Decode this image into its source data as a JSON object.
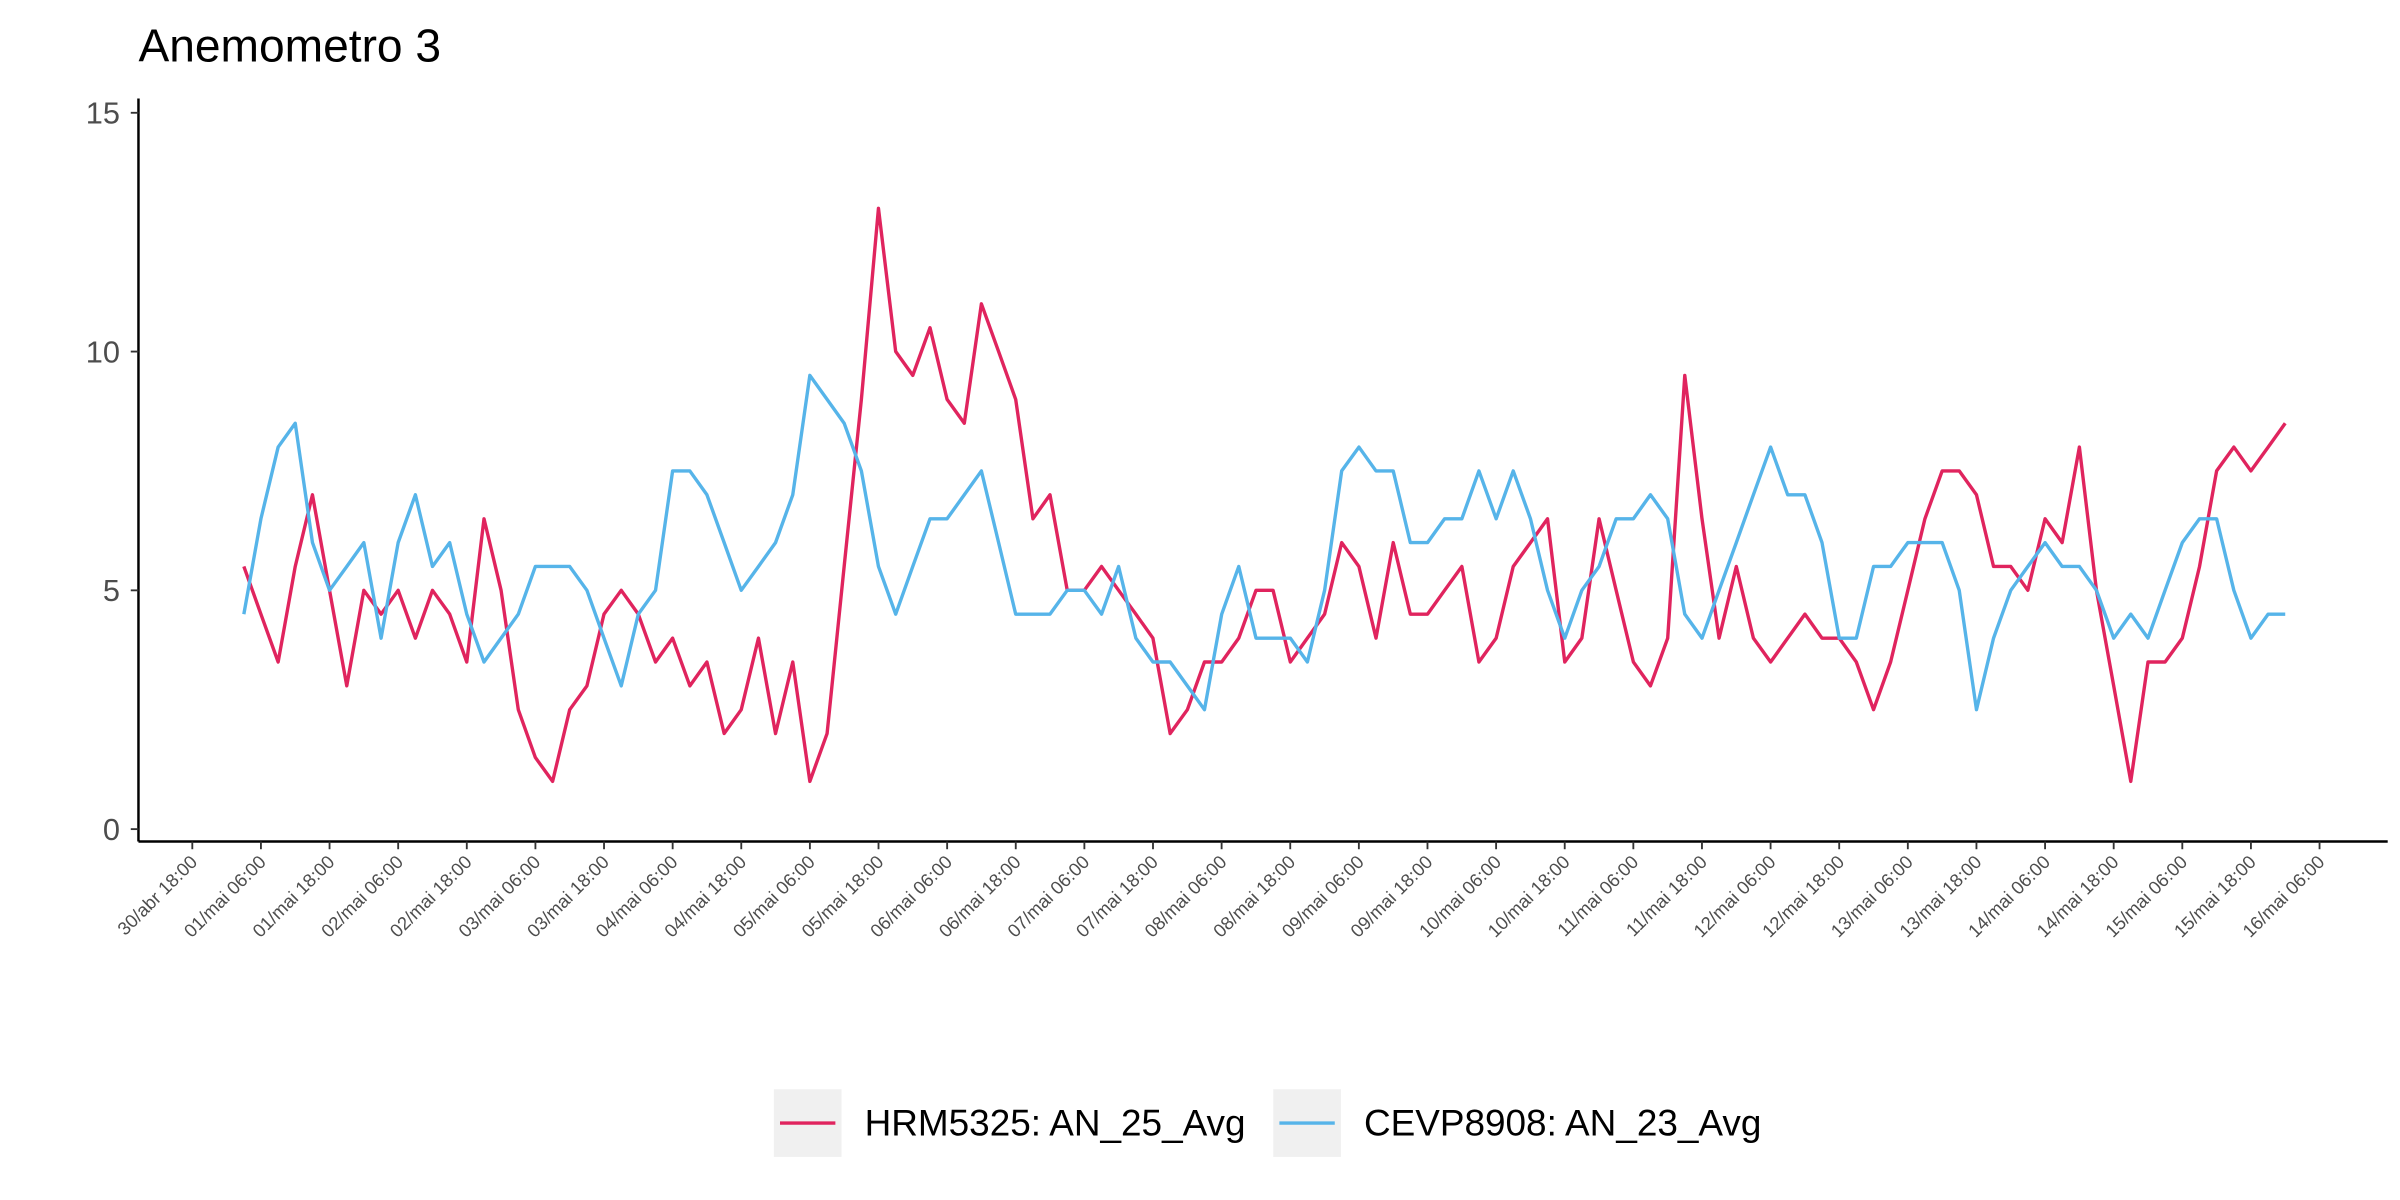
{
  "chart_data": {
    "type": "line",
    "title": "Anemometro 3",
    "x": [
      "01/mai 03:00",
      "01/mai 06:00",
      "01/mai 09:00",
      "01/mai 12:00",
      "01/mai 15:00",
      "01/mai 18:00",
      "01/mai 21:00",
      "02/mai 00:00",
      "02/mai 03:00",
      "02/mai 06:00",
      "02/mai 09:00",
      "02/mai 12:00",
      "02/mai 15:00",
      "02/mai 18:00",
      "02/mai 21:00",
      "03/mai 00:00",
      "03/mai 03:00",
      "03/mai 06:00",
      "03/mai 09:00",
      "03/mai 12:00",
      "03/mai 15:00",
      "03/mai 18:00",
      "03/mai 21:00",
      "04/mai 00:00",
      "04/mai 03:00",
      "04/mai 06:00",
      "04/mai 09:00",
      "04/mai 12:00",
      "04/mai 15:00",
      "04/mai 18:00",
      "04/mai 21:00",
      "05/mai 00:00",
      "05/mai 03:00",
      "05/mai 06:00",
      "05/mai 09:00",
      "05/mai 12:00",
      "05/mai 15:00",
      "05/mai 18:00",
      "05/mai 21:00",
      "06/mai 00:00",
      "06/mai 03:00",
      "06/mai 06:00",
      "06/mai 09:00",
      "06/mai 12:00",
      "06/mai 15:00",
      "06/mai 18:00",
      "06/mai 21:00",
      "07/mai 00:00",
      "07/mai 03:00",
      "07/mai 06:00",
      "07/mai 09:00",
      "07/mai 12:00",
      "07/mai 15:00",
      "07/mai 18:00",
      "07/mai 21:00",
      "08/mai 00:00",
      "08/mai 03:00",
      "08/mai 06:00",
      "08/mai 09:00",
      "08/mai 12:00",
      "08/mai 15:00",
      "08/mai 18:00",
      "08/mai 21:00",
      "09/mai 00:00",
      "09/mai 03:00",
      "09/mai 06:00",
      "09/mai 09:00",
      "09/mai 12:00",
      "09/mai 15:00",
      "09/mai 18:00",
      "09/mai 21:00",
      "10/mai 00:00",
      "10/mai 03:00",
      "10/mai 06:00",
      "10/mai 09:00",
      "10/mai 12:00",
      "10/mai 15:00",
      "10/mai 18:00",
      "10/mai 21:00",
      "11/mai 00:00",
      "11/mai 03:00",
      "11/mai 06:00",
      "11/mai 09:00",
      "11/mai 12:00",
      "11/mai 15:00",
      "11/mai 18:00",
      "11/mai 21:00",
      "12/mai 00:00",
      "12/mai 03:00",
      "12/mai 06:00",
      "12/mai 09:00",
      "12/mai 12:00",
      "12/mai 15:00",
      "12/mai 18:00",
      "12/mai 21:00",
      "13/mai 00:00",
      "13/mai 03:00",
      "13/mai 06:00",
      "13/mai 09:00",
      "13/mai 12:00",
      "13/mai 15:00",
      "13/mai 18:00",
      "13/mai 21:00",
      "14/mai 00:00",
      "14/mai 03:00",
      "14/mai 06:00",
      "14/mai 09:00",
      "14/mai 12:00",
      "14/mai 15:00",
      "14/mai 18:00",
      "14/mai 21:00",
      "15/mai 00:00",
      "15/mai 03:00",
      "15/mai 06:00",
      "15/mai 09:00",
      "15/mai 12:00",
      "15/mai 15:00",
      "15/mai 18:00",
      "15/mai 21:00",
      "16/mai 00:00"
    ],
    "series": [
      {
        "name": "HRM5325: AN_25_Avg",
        "color": "#e0245e",
        "values": [
          5.5,
          4.5,
          3.5,
          5.5,
          7,
          5,
          3,
          5,
          4.5,
          5,
          4,
          5,
          4.5,
          3.5,
          6.5,
          5,
          2.5,
          1.5,
          1,
          2.5,
          3,
          4.5,
          5,
          4.5,
          3.5,
          4,
          3,
          3.5,
          2,
          2.5,
          4,
          2,
          3.5,
          1,
          2,
          5.5,
          9,
          13,
          10,
          9.5,
          10.5,
          9,
          8.5,
          11,
          10,
          9,
          6.5,
          7,
          5,
          5,
          5.5,
          5,
          4.5,
          4,
          2,
          2.5,
          3.5,
          3.5,
          4,
          5,
          5,
          3.5,
          4,
          4.5,
          6,
          5.5,
          4,
          6,
          4.5,
          4.5,
          5,
          5.5,
          3.5,
          4,
          5.5,
          6,
          6.5,
          3.5,
          4,
          6.5,
          5,
          3.5,
          3,
          4,
          9.5,
          6.5,
          4,
          5.5,
          4,
          3.5,
          4,
          4.5,
          4,
          4,
          3.5,
          2.5,
          3.5,
          5,
          6.5,
          7.5,
          7.5,
          7,
          5.5,
          5.5,
          5,
          6.5,
          6,
          8,
          5,
          3,
          1,
          3.5,
          3.5,
          4,
          5.5,
          7.5,
          8,
          7.5,
          8,
          8.5
        ]
      },
      {
        "name": "CEVP8908: AN_23_Avg",
        "color": "#56b4e9",
        "values": [
          4.5,
          6.5,
          8,
          8.5,
          6,
          5,
          5.5,
          6,
          4,
          6,
          7,
          5.5,
          6,
          4.5,
          3.5,
          4,
          4.5,
          5.5,
          5.5,
          5.5,
          5,
          4,
          3,
          4.5,
          5,
          7.5,
          7.5,
          7,
          6,
          5,
          5.5,
          6,
          7,
          9.5,
          9,
          8.5,
          7.5,
          5.5,
          4.5,
          5.5,
          6.5,
          6.5,
          7,
          7.5,
          6,
          4.5,
          4.5,
          4.5,
          5,
          5,
          4.5,
          5.5,
          4,
          3.5,
          3.5,
          3,
          2.5,
          4.5,
          5.5,
          4,
          4,
          4,
          3.5,
          5,
          7.5,
          8,
          7.5,
          7.5,
          6,
          6,
          6.5,
          6.5,
          7.5,
          6.5,
          7.5,
          6.5,
          5,
          4,
          5,
          5.5,
          6.5,
          6.5,
          7,
          6.5,
          4.5,
          4,
          5,
          6,
          7,
          8,
          7,
          7,
          6,
          4,
          4,
          5.5,
          5.5,
          6,
          6,
          6,
          5,
          2.5,
          4,
          5,
          5.5,
          6,
          5.5,
          5.5,
          5,
          4,
          4.5,
          4,
          5,
          6,
          6.5,
          6.5,
          5,
          4,
          4.5,
          4.5
        ]
      }
    ],
    "xlim": [
      "30/abr 08:35",
      "16/mai 17:55"
    ],
    "xticks": [
      "30/abr 18:00",
      "01/mai 06:00",
      "01/mai 18:00",
      "02/mai 06:00",
      "02/mai 18:00",
      "03/mai 06:00",
      "03/mai 18:00",
      "04/mai 06:00",
      "04/mai 18:00",
      "05/mai 06:00",
      "05/mai 18:00",
      "06/mai 06:00",
      "06/mai 18:00",
      "07/mai 06:00",
      "07/mai 18:00",
      "08/mai 06:00",
      "08/mai 18:00",
      "09/mai 06:00",
      "09/mai 18:00",
      "10/mai 06:00",
      "10/mai 18:00",
      "11/mai 06:00",
      "11/mai 18:00",
      "12/mai 06:00",
      "12/mai 18:00",
      "13/mai 06:00",
      "13/mai 18:00",
      "14/mai 06:00",
      "14/mai 18:00",
      "15/mai 06:00",
      "15/mai 18:00",
      "16/mai 06:00"
    ],
    "ylim": [
      -0.26,
      15.3
    ],
    "yticks": [
      0,
      5,
      10,
      15
    ],
    "legend": "bottom",
    "grid": false
  }
}
